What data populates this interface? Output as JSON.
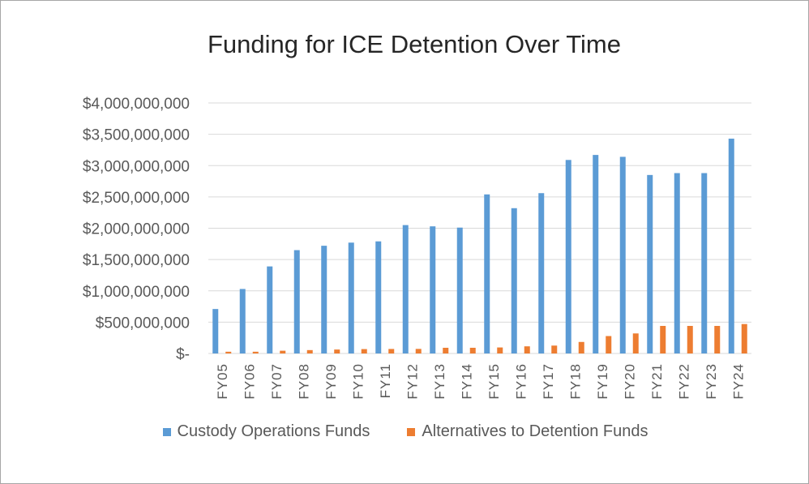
{
  "chart_data": {
    "type": "bar",
    "title": "Funding for ICE Detention Over Time",
    "categories": [
      "FY05",
      "FY06",
      "FY07",
      "FY08",
      "FY09",
      "FY10",
      "FY11",
      "FY12",
      "FY13",
      "FY14",
      "FY15",
      "FY16",
      "FY17",
      "FY18",
      "FY19",
      "FY20",
      "FY21",
      "FY22",
      "FY23",
      "FY24"
    ],
    "series": [
      {
        "name": "Custody Operations Funds",
        "color": "#5b9bd5",
        "values": [
          710000000,
          1030000000,
          1390000000,
          1650000000,
          1720000000,
          1770000000,
          1790000000,
          2050000000,
          2030000000,
          2010000000,
          2540000000,
          2320000000,
          2560000000,
          3090000000,
          3170000000,
          3140000000,
          2850000000,
          2880000000,
          2880000000,
          3430000000
        ]
      },
      {
        "name": "Alternatives to Detention Funds",
        "color": "#ed7d31",
        "values": [
          28000000,
          28000000,
          44000000,
          54000000,
          63000000,
          70000000,
          72000000,
          73000000,
          91000000,
          91000000,
          96000000,
          114000000,
          126000000,
          184000000,
          278000000,
          320000000,
          440000000,
          440000000,
          440000000,
          470000000
        ]
      }
    ],
    "yticks": [
      {
        "value": 0,
        "label": "$-"
      },
      {
        "value": 500000000,
        "label": "$500,000,000"
      },
      {
        "value": 1000000000,
        "label": "$1,000,000,000"
      },
      {
        "value": 1500000000,
        "label": "$1,500,000,000"
      },
      {
        "value": 2000000000,
        "label": "$2,000,000,000"
      },
      {
        "value": 2500000000,
        "label": "$2,500,000,000"
      },
      {
        "value": 3000000000,
        "label": "$3,000,000,000"
      },
      {
        "value": 3500000000,
        "label": "$3,500,000,000"
      },
      {
        "value": 4000000000,
        "label": "$4,000,000,000"
      }
    ],
    "ylim": [
      0,
      4000000000
    ],
    "grid": true,
    "legend": "bottom",
    "grid_color": "#d9d9d9"
  }
}
